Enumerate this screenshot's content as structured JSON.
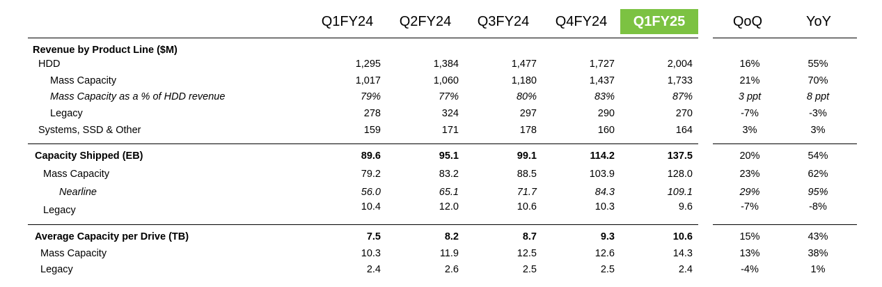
{
  "columns": [
    "Q1FY24",
    "Q2FY24",
    "Q3FY24",
    "Q4FY24",
    "Q1FY25",
    "QoQ",
    "YoY"
  ],
  "highlight_color": "#7cc242",
  "sections": [
    {
      "title": "Revenue by Product Line ($M)",
      "rows": [
        {
          "label": "HDD",
          "values": [
            "1,295",
            "1,384",
            "1,477",
            "1,727",
            "2,004"
          ],
          "qoq": "16%",
          "yoy": "55%"
        },
        {
          "label": "Mass Capacity",
          "values": [
            "1,017",
            "1,060",
            "1,180",
            "1,437",
            "1,733"
          ],
          "qoq": "21%",
          "yoy": "70%"
        },
        {
          "label": "Mass Capacity as a % of HDD revenue",
          "values": [
            "79%",
            "77%",
            "80%",
            "83%",
            "87%"
          ],
          "qoq": "3 ppt",
          "yoy": "8 ppt"
        },
        {
          "label": "Legacy",
          "values": [
            "278",
            "324",
            "297",
            "290",
            "270"
          ],
          "qoq": "-7%",
          "yoy": "-3%"
        },
        {
          "label": "Systems, SSD & Other",
          "values": [
            "159",
            "171",
            "178",
            "160",
            "164"
          ],
          "qoq": "3%",
          "yoy": "3%"
        }
      ]
    },
    {
      "title": "Capacity Shipped (EB)",
      "title_values": [
        "89.6",
        "95.1",
        "99.1",
        "114.2",
        "137.5"
      ],
      "title_qoq": "20%",
      "title_yoy": "54%",
      "rows": [
        {
          "label": "Mass Capacity",
          "values": [
            "79.2",
            "83.2",
            "88.5",
            "103.9",
            "128.0"
          ],
          "qoq": "23%",
          "yoy": "62%"
        },
        {
          "label": "Nearline",
          "values": [
            "56.0",
            "65.1",
            "71.7",
            "84.3",
            "109.1"
          ],
          "qoq": "29%",
          "yoy": "95%"
        },
        {
          "label": "Legacy",
          "values": [
            "10.4",
            "12.0",
            "10.6",
            "10.3",
            "9.6"
          ],
          "qoq": "-7%",
          "yoy": "-8%"
        }
      ]
    },
    {
      "title": "Average Capacity per Drive (TB)",
      "title_values": [
        "7.5",
        "8.2",
        "8.7",
        "9.3",
        "10.6"
      ],
      "title_qoq": "15%",
      "title_yoy": "43%",
      "rows": [
        {
          "label": "Mass Capacity",
          "values": [
            "10.3",
            "11.9",
            "12.5",
            "12.6",
            "14.3"
          ],
          "qoq": "13%",
          "yoy": "38%"
        },
        {
          "label": "Legacy",
          "values": [
            "2.4",
            "2.6",
            "2.5",
            "2.5",
            "2.4"
          ],
          "qoq": "-4%",
          "yoy": "1%"
        }
      ]
    }
  ]
}
